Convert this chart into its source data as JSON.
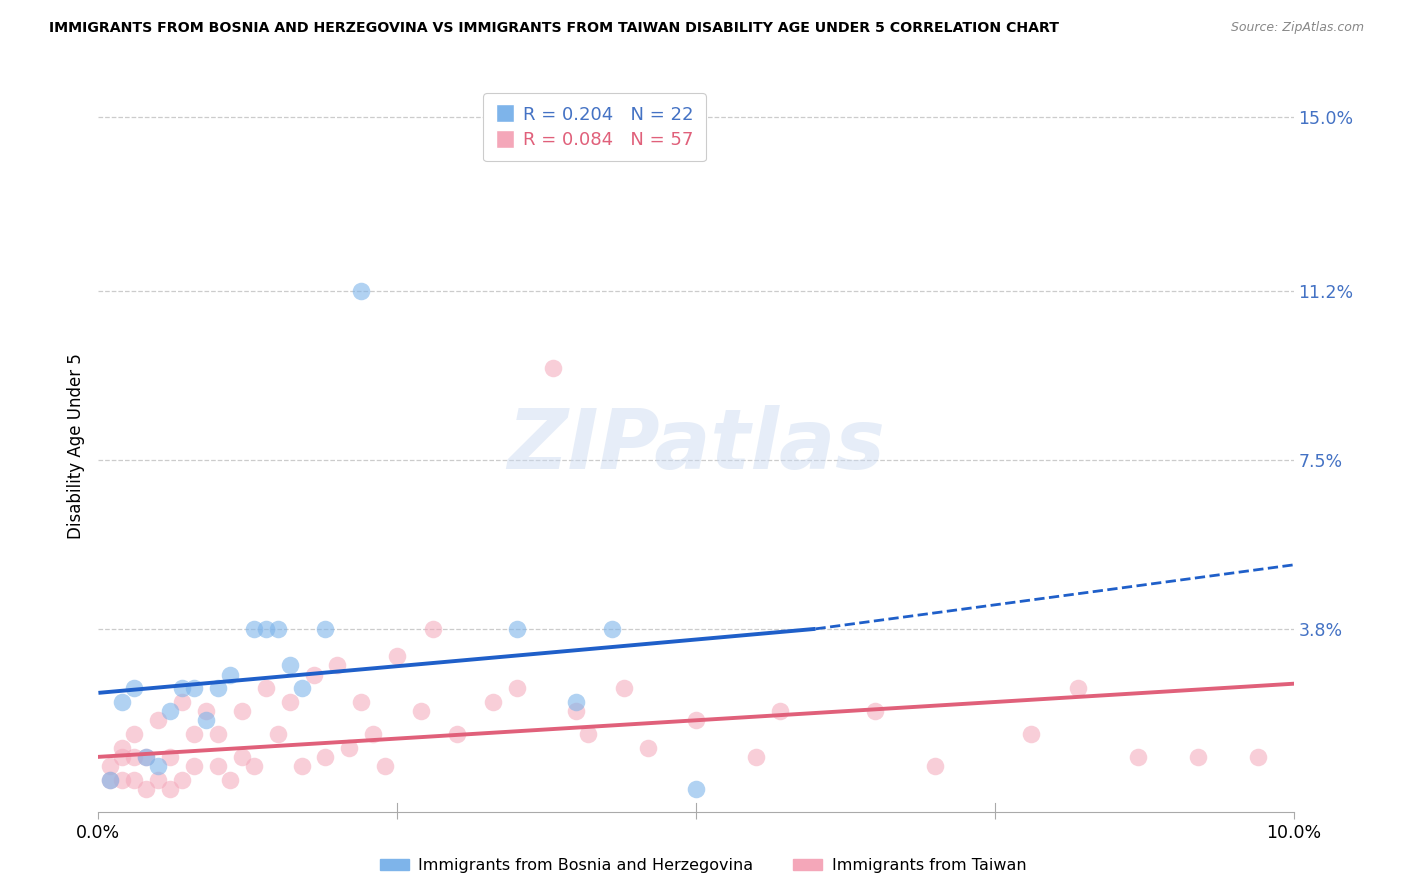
{
  "title": "IMMIGRANTS FROM BOSNIA AND HERZEGOVINA VS IMMIGRANTS FROM TAIWAN DISABILITY AGE UNDER 5 CORRELATION CHART",
  "source": "Source: ZipAtlas.com",
  "ylabel": "Disability Age Under 5",
  "xmin": 0.0,
  "xmax": 0.1,
  "ymin": -0.002,
  "ymax": 0.158,
  "ytick_vals": [
    0.038,
    0.075,
    0.112,
    0.15
  ],
  "ytick_labels": [
    "3.8%",
    "7.5%",
    "11.2%",
    "15.0%"
  ],
  "xtick_vals": [
    0.0,
    0.025,
    0.05,
    0.075,
    0.1
  ],
  "xtick_labels": [
    "0.0%",
    "",
    "",
    "",
    "10.0%"
  ],
  "color_bosnia": "#7eb4ea",
  "color_taiwan": "#f4a7b9",
  "color_bosnia_line": "#1f5fc9",
  "color_taiwan_line": "#e0607a",
  "color_ytick": "#4472c4",
  "legend_bosnia_label": "R = 0.204   N = 22",
  "legend_taiwan_label": "R = 0.084   N = 57",
  "legend_bosnia_color": "#4472c4",
  "legend_taiwan_color": "#e0607a",
  "watermark": "ZIPatlas",
  "bottom_legend_bosnia": "Immigrants from Bosnia and Herzegovina",
  "bottom_legend_taiwan": "Immigrants from Taiwan",
  "bosnia_line_start_x": 0.0,
  "bosnia_line_start_y": 0.024,
  "bosnia_line_solid_end_x": 0.06,
  "bosnia_line_solid_end_y": 0.038,
  "bosnia_line_end_x": 0.1,
  "bosnia_line_end_y": 0.052,
  "taiwan_line_start_x": 0.0,
  "taiwan_line_start_y": 0.01,
  "taiwan_line_end_x": 0.1,
  "taiwan_line_end_y": 0.026,
  "bosnia_x": [
    0.001,
    0.002,
    0.003,
    0.004,
    0.005,
    0.006,
    0.007,
    0.008,
    0.009,
    0.01,
    0.011,
    0.013,
    0.014,
    0.015,
    0.016,
    0.017,
    0.019,
    0.022,
    0.035,
    0.04,
    0.043,
    0.05
  ],
  "bosnia_y": [
    0.005,
    0.022,
    0.025,
    0.01,
    0.008,
    0.02,
    0.025,
    0.025,
    0.018,
    0.025,
    0.028,
    0.038,
    0.038,
    0.038,
    0.03,
    0.025,
    0.038,
    0.112,
    0.038,
    0.022,
    0.038,
    0.003
  ],
  "taiwan_x": [
    0.001,
    0.001,
    0.002,
    0.002,
    0.002,
    0.003,
    0.003,
    0.003,
    0.004,
    0.004,
    0.005,
    0.005,
    0.006,
    0.006,
    0.007,
    0.007,
    0.008,
    0.008,
    0.009,
    0.01,
    0.01,
    0.011,
    0.012,
    0.012,
    0.013,
    0.014,
    0.015,
    0.016,
    0.017,
    0.018,
    0.019,
    0.02,
    0.021,
    0.022,
    0.023,
    0.024,
    0.025,
    0.027,
    0.028,
    0.03,
    0.033,
    0.035,
    0.038,
    0.04,
    0.041,
    0.044,
    0.046,
    0.05,
    0.055,
    0.057,
    0.065,
    0.07,
    0.078,
    0.082,
    0.087,
    0.092,
    0.097
  ],
  "taiwan_y": [
    0.005,
    0.008,
    0.005,
    0.01,
    0.012,
    0.005,
    0.01,
    0.015,
    0.003,
    0.01,
    0.005,
    0.018,
    0.003,
    0.01,
    0.005,
    0.022,
    0.008,
    0.015,
    0.02,
    0.008,
    0.015,
    0.005,
    0.01,
    0.02,
    0.008,
    0.025,
    0.015,
    0.022,
    0.008,
    0.028,
    0.01,
    0.03,
    0.012,
    0.022,
    0.015,
    0.008,
    0.032,
    0.02,
    0.038,
    0.015,
    0.022,
    0.025,
    0.095,
    0.02,
    0.015,
    0.025,
    0.012,
    0.018,
    0.01,
    0.02,
    0.02,
    0.008,
    0.015,
    0.025,
    0.01,
    0.01,
    0.01
  ]
}
